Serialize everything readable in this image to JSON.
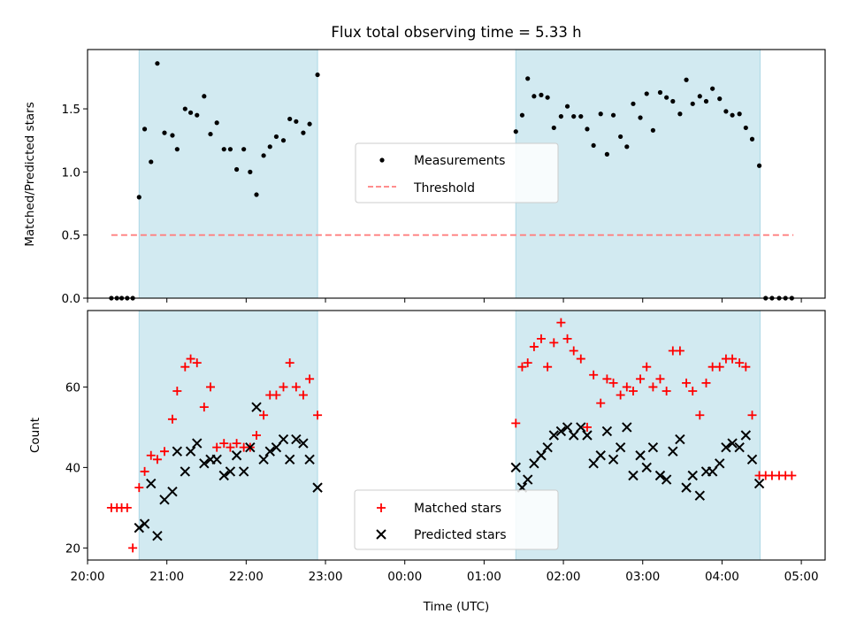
{
  "chart_data": [
    {
      "type": "scatter",
      "title": "Flux total observing time = 5.33 h",
      "ylabel": "Matched/Predicted stars",
      "xlabel": "",
      "xlim": [
        20.0,
        29.3
      ],
      "ylim": [
        0.0,
        1.97
      ],
      "yticks": [
        0.0,
        0.5,
        1.0,
        1.5
      ],
      "ytick_labels": [
        "0.0",
        "0.5",
        "1.0",
        "1.5"
      ],
      "shaded_intervals": [
        [
          20.65,
          22.9
        ],
        [
          25.4,
          28.48
        ]
      ],
      "shade_color": "#add8e6",
      "legend_position": "center",
      "series": [
        {
          "name": "Measurements",
          "marker": "dot",
          "color": "#000000",
          "x": [
            20.3,
            20.37,
            20.43,
            20.5,
            20.57,
            20.65,
            20.72,
            20.8,
            20.88,
            20.97,
            21.07,
            21.13,
            21.23,
            21.3,
            21.38,
            21.47,
            21.55,
            21.63,
            21.72,
            21.8,
            21.88,
            21.97,
            22.05,
            22.13,
            22.22,
            22.3,
            22.38,
            22.47,
            22.55,
            22.63,
            22.72,
            22.8,
            22.9,
            25.4,
            25.48,
            25.55,
            25.63,
            25.72,
            25.8,
            25.88,
            25.97,
            26.05,
            26.13,
            26.22,
            26.3,
            26.38,
            26.47,
            26.55,
            26.63,
            26.72,
            26.8,
            26.88,
            26.97,
            27.05,
            27.13,
            27.22,
            27.3,
            27.38,
            27.47,
            27.55,
            27.63,
            27.72,
            27.8,
            27.88,
            27.97,
            28.05,
            28.13,
            28.22,
            28.3,
            28.38,
            28.47,
            28.55,
            28.63,
            28.72,
            28.8,
            28.88
          ],
          "y": [
            0.0,
            0.0,
            0.0,
            0.0,
            0.0,
            0.8,
            1.34,
            1.08,
            1.86,
            1.31,
            1.29,
            1.18,
            1.5,
            1.47,
            1.45,
            1.6,
            1.3,
            1.39,
            1.18,
            1.18,
            1.02,
            1.18,
            1.0,
            0.82,
            1.13,
            1.2,
            1.28,
            1.25,
            1.42,
            1.4,
            1.31,
            1.38,
            1.77,
            1.32,
            1.45,
            1.74,
            1.6,
            1.61,
            1.59,
            1.35,
            1.44,
            1.52,
            1.44,
            1.44,
            1.34,
            1.21,
            1.46,
            1.14,
            1.45,
            1.28,
            1.2,
            1.54,
            1.43,
            1.62,
            1.33,
            1.63,
            1.59,
            1.56,
            1.46,
            1.73,
            1.54,
            1.6,
            1.56,
            1.66,
            1.58,
            1.48,
            1.45,
            1.46,
            1.35,
            1.26,
            1.05,
            0.0,
            0.0,
            0.0,
            0.0,
            0.0
          ]
        },
        {
          "name": "Threshold",
          "marker": "dashed-line",
          "color": "#ff7f7f",
          "x": [
            20.3,
            28.9
          ],
          "y": [
            0.5,
            0.5
          ]
        }
      ]
    },
    {
      "type": "scatter",
      "title": "",
      "ylabel": "Count",
      "xlabel": "Time (UTC)",
      "xlim": [
        20.0,
        29.3
      ],
      "ylim": [
        17,
        79
      ],
      "yticks": [
        20,
        40,
        60
      ],
      "ytick_labels": [
        "20",
        "40",
        "60"
      ],
      "xticks": [
        20,
        21,
        22,
        23,
        24,
        25,
        26,
        27,
        28,
        29
      ],
      "xtick_labels": [
        "20:00",
        "21:00",
        "22:00",
        "23:00",
        "00:00",
        "01:00",
        "02:00",
        "03:00",
        "04:00",
        "05:00"
      ],
      "shaded_intervals": [
        [
          20.65,
          22.9
        ],
        [
          25.4,
          28.48
        ]
      ],
      "shade_color": "#add8e6",
      "legend_position": "lower center",
      "series": [
        {
          "name": "Matched stars",
          "marker": "plus",
          "color": "#ff0000",
          "x": [
            20.3,
            20.37,
            20.43,
            20.5,
            20.57,
            20.65,
            20.72,
            20.8,
            20.88,
            20.97,
            21.07,
            21.13,
            21.23,
            21.3,
            21.38,
            21.47,
            21.55,
            21.63,
            21.72,
            21.8,
            21.88,
            21.97,
            22.05,
            22.13,
            22.22,
            22.3,
            22.38,
            22.47,
            22.55,
            22.63,
            22.72,
            22.8,
            22.9,
            25.4,
            25.48,
            25.55,
            25.63,
            25.72,
            25.8,
            25.88,
            25.97,
            26.05,
            26.13,
            26.22,
            26.3,
            26.38,
            26.47,
            26.55,
            26.63,
            26.72,
            26.8,
            26.88,
            26.97,
            27.05,
            27.13,
            27.22,
            27.3,
            27.38,
            27.47,
            27.55,
            27.63,
            27.72,
            27.8,
            27.88,
            27.97,
            28.05,
            28.13,
            28.22,
            28.3,
            28.38,
            28.47,
            28.55,
            28.63,
            28.72,
            28.8,
            28.88
          ],
          "y": [
            30,
            30,
            30,
            30,
            20,
            35,
            39,
            43,
            42,
            44,
            52,
            59,
            65,
            67,
            66,
            55,
            60,
            45,
            46,
            45,
            46,
            45,
            45,
            48,
            53,
            58,
            58,
            60,
            66,
            60,
            58,
            62,
            53,
            51,
            65,
            66,
            70,
            72,
            65,
            71,
            76,
            72,
            69,
            67,
            50,
            63,
            56,
            62,
            61,
            58,
            60,
            59,
            62,
            65,
            60,
            62,
            59,
            69,
            69,
            61,
            59,
            53,
            61,
            65,
            65,
            67,
            67,
            66,
            65,
            53,
            38,
            38,
            38,
            38,
            38,
            38
          ]
        },
        {
          "name": "Predicted stars",
          "marker": "x",
          "color": "#000000",
          "x": [
            20.65,
            20.72,
            20.8,
            20.88,
            20.97,
            21.07,
            21.13,
            21.23,
            21.3,
            21.38,
            21.47,
            21.55,
            21.63,
            21.72,
            21.8,
            21.88,
            21.97,
            22.05,
            22.13,
            22.22,
            22.3,
            22.38,
            22.47,
            22.55,
            22.63,
            22.72,
            22.8,
            22.9,
            25.4,
            25.48,
            25.55,
            25.63,
            25.72,
            25.8,
            25.88,
            25.97,
            26.05,
            26.13,
            26.22,
            26.3,
            26.38,
            26.47,
            26.55,
            26.63,
            26.72,
            26.8,
            26.88,
            26.97,
            27.05,
            27.13,
            27.22,
            27.3,
            27.38,
            27.47,
            27.55,
            27.63,
            27.72,
            27.8,
            27.88,
            27.97,
            28.05,
            28.13,
            28.22,
            28.3,
            28.38,
            28.47
          ],
          "y": [
            25,
            26,
            36,
            23,
            32,
            34,
            44,
            39,
            44,
            46,
            41,
            42,
            42,
            38,
            39,
            43,
            39,
            45,
            55,
            42,
            44,
            45,
            47,
            42,
            47,
            46,
            42,
            35,
            40,
            35,
            37,
            41,
            43,
            45,
            48,
            49,
            50,
            48,
            50,
            48,
            41,
            43,
            49,
            42,
            45,
            50,
            38,
            43,
            40,
            45,
            38,
            37,
            44,
            47,
            35,
            38,
            33,
            39,
            39,
            41,
            45,
            46,
            45,
            48,
            42,
            36
          ]
        }
      ]
    }
  ]
}
